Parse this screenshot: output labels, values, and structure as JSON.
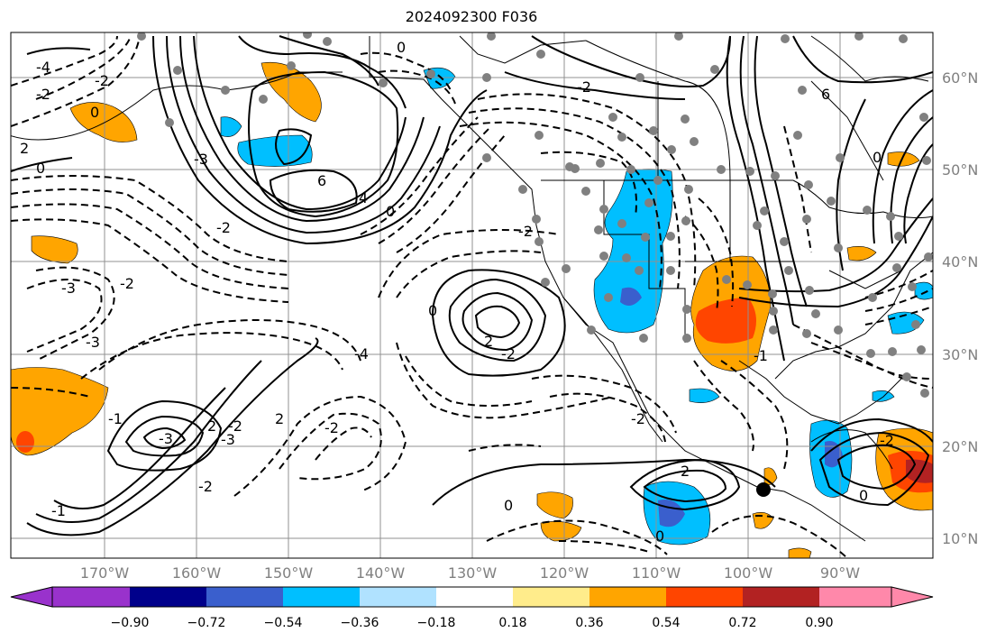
{
  "title": "2024092300 F036",
  "map": {
    "lat_labels": [
      "60°N",
      "50°N",
      "40°N",
      "30°N",
      "20°N",
      "10°N"
    ],
    "lon_labels": [
      "170°W",
      "160°W",
      "150°W",
      "140°W",
      "130°W",
      "120°W",
      "110°W",
      "100°W",
      "90°W"
    ],
    "contour_labels": [
      "-4",
      "-2",
      "-2",
      "0",
      "0",
      "2",
      "-3",
      "6",
      "4",
      "-2",
      "0",
      "-3",
      "-2",
      "-3",
      "-4",
      "-1",
      "-3",
      "2",
      "-3",
      "-2",
      "2",
      "-2",
      "-2",
      "-1",
      "0",
      "2",
      "-2",
      "-2",
      "0",
      "6",
      "-2",
      "0",
      "0",
      "2",
      "0",
      "-2",
      "-2",
      "-1",
      "0"
    ],
    "station_marker": "black-dot"
  },
  "colorbar": {
    "ticks": [
      "−0.90",
      "−0.72",
      "−0.54",
      "−0.36",
      "−0.18",
      "0.18",
      "0.36",
      "0.54",
      "0.72",
      "0.90"
    ],
    "colors": [
      "#9932cc",
      "#00008b",
      "#3a5fcd",
      "#00bfff",
      "#b0e2ff",
      "#ffffff",
      "#ffec8b",
      "#ffa500",
      "#ff4500",
      "#b22222",
      "#ff88aa"
    ]
  }
}
